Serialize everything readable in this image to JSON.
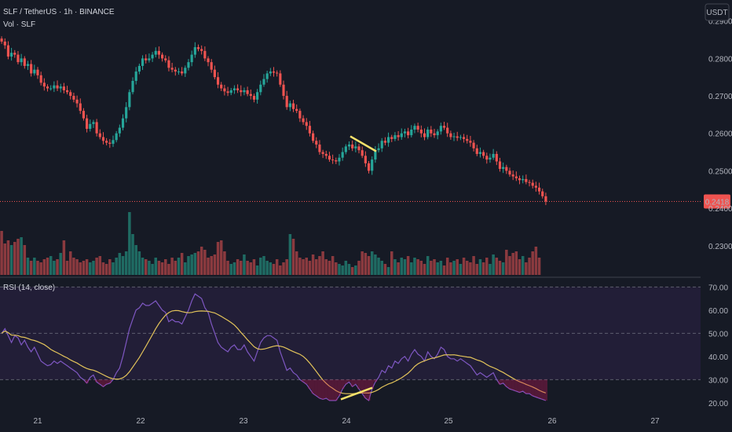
{
  "header": {
    "symbol_line": "SLF / TetherUS · 1h · BINANCE",
    "volume_line": "Vol · SLF",
    "currency_badge": "USDT"
  },
  "rsi_panel": {
    "label": "RSI (14, close)"
  },
  "colors": {
    "background": "#161a25",
    "up": "#26a69a",
    "down": "#ef5350",
    "up_volume": "#1f6b63",
    "down_volume": "#8b3a3f",
    "rsi_line": "#7e57c2",
    "rsi_ma": "#e2c35a",
    "rsi_band": "#241f3a",
    "annotation": "#f7e26b",
    "price_line": "#ef5350"
  },
  "chart_data": [
    {
      "type": "candlestick",
      "name": "SLF / TetherUS · 1h · BINANCE",
      "x_ticks": [
        "21",
        "22",
        "23",
        "24",
        "25",
        "26",
        "27"
      ],
      "y_ticks": [
        "0.2900",
        "0.2800",
        "0.2700",
        "0.2600",
        "0.2500",
        "0.2400",
        "0.2300"
      ],
      "ylim": [
        0.2222,
        0.2935
      ],
      "last_price": "0.2418",
      "closes": [
        0.2845,
        0.2835,
        0.2805,
        0.2815,
        0.281,
        0.279,
        0.28,
        0.278,
        0.2785,
        0.276,
        0.277,
        0.2755,
        0.2735,
        0.2725,
        0.272,
        0.272,
        0.2728,
        0.272,
        0.2725,
        0.2715,
        0.271,
        0.27,
        0.269,
        0.268,
        0.266,
        0.264,
        0.2612,
        0.2625,
        0.263,
        0.26,
        0.259,
        0.258,
        0.2575,
        0.2572,
        0.2582,
        0.26,
        0.2615,
        0.264,
        0.267,
        0.271,
        0.274,
        0.2765,
        0.278,
        0.28,
        0.2795,
        0.28,
        0.281,
        0.282,
        0.281,
        0.28,
        0.2795,
        0.2775,
        0.277,
        0.2765,
        0.2765,
        0.276,
        0.2775,
        0.279,
        0.281,
        0.283,
        0.2825,
        0.282,
        0.28,
        0.279,
        0.277,
        0.275,
        0.273,
        0.272,
        0.2712,
        0.2708,
        0.2715,
        0.272,
        0.2715,
        0.271,
        0.2715,
        0.2705,
        0.27,
        0.269,
        0.271,
        0.273,
        0.2745,
        0.276,
        0.2765,
        0.2762,
        0.276,
        0.273,
        0.27,
        0.267,
        0.268,
        0.2665,
        0.266,
        0.264,
        0.263,
        0.262,
        0.26,
        0.258,
        0.257,
        0.255,
        0.2545,
        0.254,
        0.253,
        0.2528,
        0.2525,
        0.2535,
        0.255,
        0.2565,
        0.257,
        0.256,
        0.2565,
        0.2555,
        0.254,
        0.252,
        0.25,
        0.253,
        0.2555,
        0.256,
        0.258,
        0.2575,
        0.259,
        0.2585,
        0.2595,
        0.259,
        0.26,
        0.2605,
        0.2595,
        0.261,
        0.262,
        0.261,
        0.26,
        0.259,
        0.261,
        0.26,
        0.2595,
        0.2605,
        0.262,
        0.2615,
        0.26,
        0.259,
        0.2592,
        0.2588,
        0.259,
        0.2585,
        0.258,
        0.2575,
        0.256,
        0.2545,
        0.255,
        0.254,
        0.253,
        0.2535,
        0.2545,
        0.2525,
        0.2505,
        0.251,
        0.25,
        0.249,
        0.2485,
        0.248,
        0.2475,
        0.2478,
        0.247,
        0.2468,
        0.246,
        0.2455,
        0.2445,
        0.2432,
        0.2418
      ],
      "volumes": [
        0.56,
        0.4,
        0.44,
        0.38,
        0.42,
        0.46,
        0.48,
        0.38,
        0.22,
        0.18,
        0.22,
        0.18,
        0.16,
        0.2,
        0.22,
        0.24,
        0.18,
        0.2,
        0.28,
        0.44,
        0.18,
        0.3,
        0.22,
        0.2,
        0.16,
        0.18,
        0.2,
        0.16,
        0.18,
        0.22,
        0.24,
        0.16,
        0.14,
        0.2,
        0.16,
        0.22,
        0.28,
        0.24,
        0.3,
        0.8,
        0.52,
        0.38,
        0.3,
        0.22,
        0.2,
        0.18,
        0.14,
        0.22,
        0.18,
        0.16,
        0.2,
        0.14,
        0.22,
        0.18,
        0.22,
        0.28,
        0.16,
        0.24,
        0.26,
        0.28,
        0.3,
        0.36,
        0.32,
        0.22,
        0.24,
        0.26,
        0.42,
        0.44,
        0.3,
        0.18,
        0.14,
        0.16,
        0.2,
        0.18,
        0.26,
        0.18,
        0.16,
        0.2,
        0.12,
        0.22,
        0.24,
        0.18,
        0.16,
        0.14,
        0.2,
        0.12,
        0.16,
        0.2,
        0.52,
        0.46,
        0.3,
        0.22,
        0.2,
        0.22,
        0.18,
        0.26,
        0.2,
        0.24,
        0.3,
        0.2,
        0.18,
        0.24,
        0.16,
        0.14,
        0.12,
        0.18,
        0.14,
        0.1,
        0.12,
        0.18,
        0.3,
        0.28,
        0.24,
        0.3,
        0.26,
        0.22,
        0.18,
        0.14,
        0.1,
        0.3,
        0.2,
        0.16,
        0.22,
        0.2,
        0.24,
        0.16,
        0.22,
        0.2,
        0.18,
        0.14,
        0.24,
        0.18,
        0.2,
        0.16,
        0.18,
        0.12,
        0.22,
        0.16,
        0.18,
        0.2,
        0.14,
        0.22,
        0.18,
        0.16,
        0.24,
        0.14,
        0.2,
        0.16,
        0.22,
        0.14,
        0.26,
        0.22,
        0.18,
        0.16,
        0.32,
        0.24,
        0.28,
        0.3,
        0.2,
        0.24,
        0.16,
        0.22,
        0.3,
        0.36,
        0.22
      ]
    },
    {
      "type": "line",
      "name": "RSI (14, close)",
      "y_ticks": [
        "70.00",
        "60.00",
        "50.00",
        "40.00",
        "30.00",
        "20.00"
      ],
      "ylim": [
        16.9,
        73.5
      ],
      "band": [
        30,
        70
      ],
      "series": [
        {
          "values": [
            50,
            52,
            49,
            46,
            49,
            48,
            45,
            47,
            44,
            42,
            44,
            41,
            38,
            37,
            36,
            36.5,
            38,
            37,
            38,
            37,
            36,
            35,
            34,
            33,
            31,
            30,
            28.5,
            31,
            32,
            29,
            28,
            27,
            28,
            28.5,
            30,
            33,
            35,
            40,
            46,
            52,
            56,
            60,
            61,
            63,
            62,
            62,
            63,
            64,
            62,
            60,
            59,
            55,
            56,
            55,
            55,
            54,
            57,
            60,
            64,
            67,
            66,
            65,
            61,
            59,
            54,
            50,
            46,
            44,
            43,
            42,
            44,
            45,
            43,
            43,
            45,
            42,
            40,
            38,
            42,
            46,
            48,
            49,
            49,
            48,
            47,
            42,
            38,
            34,
            35,
            33,
            32,
            30,
            29,
            28,
            26,
            24,
            23,
            22,
            21.5,
            22,
            21,
            21,
            21,
            23,
            26,
            28,
            29,
            27,
            28,
            26,
            24,
            22,
            21,
            26,
            29,
            31,
            34,
            33,
            36,
            35,
            38,
            37,
            39,
            40,
            38,
            41,
            43,
            41,
            40,
            38,
            42,
            40,
            39,
            41,
            44,
            43,
            40,
            39,
            39,
            38,
            39,
            38,
            37,
            36,
            34,
            32,
            33,
            32,
            31,
            32,
            33,
            30,
            28,
            28.5,
            27,
            26,
            25.5,
            25,
            24.5,
            25,
            24,
            24,
            23,
            22.5,
            22,
            21.5,
            21
          ]
        }
      ]
    }
  ]
}
